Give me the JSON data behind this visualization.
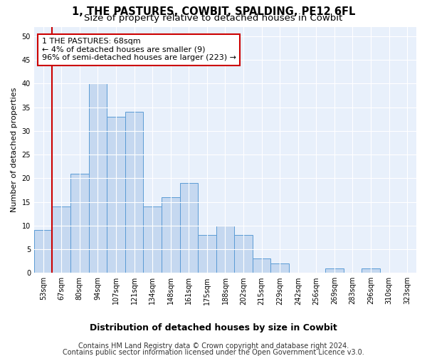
{
  "title": "1, THE PASTURES, COWBIT, SPALDING, PE12 6FL",
  "subtitle": "Size of property relative to detached houses in Cowbit",
  "xlabel": "Distribution of detached houses by size in Cowbit",
  "ylabel": "Number of detached properties",
  "categories": [
    "53sqm",
    "67sqm",
    "80sqm",
    "94sqm",
    "107sqm",
    "121sqm",
    "134sqm",
    "148sqm",
    "161sqm",
    "175sqm",
    "188sqm",
    "202sqm",
    "215sqm",
    "229sqm",
    "242sqm",
    "256sqm",
    "269sqm",
    "283sqm",
    "296sqm",
    "310sqm",
    "323sqm"
  ],
  "values": [
    9,
    14,
    21,
    40,
    33,
    34,
    14,
    16,
    19,
    8,
    10,
    8,
    3,
    2,
    0,
    0,
    1,
    0,
    1,
    0,
    0
  ],
  "bar_color": "#c5d8f0",
  "bar_edge_color": "#5b9bd5",
  "highlight_color": "#cc0000",
  "annotation_title": "1 THE PASTURES: 68sqm",
  "annotation_line1": "← 4% of detached houses are smaller (9)",
  "annotation_line2": "96% of semi-detached houses are larger (223) →",
  "annotation_box_color": "#ffffff",
  "annotation_box_edge": "#cc0000",
  "ylim": [
    0,
    52
  ],
  "yticks": [
    0,
    5,
    10,
    15,
    20,
    25,
    30,
    35,
    40,
    45,
    50
  ],
  "plot_bg_color": "#e8f0fb",
  "footer_line1": "Contains HM Land Registry data © Crown copyright and database right 2024.",
  "footer_line2": "Contains public sector information licensed under the Open Government Licence v3.0.",
  "title_fontsize": 10.5,
  "subtitle_fontsize": 9.5,
  "xlabel_fontsize": 9,
  "ylabel_fontsize": 8,
  "tick_fontsize": 7,
  "footer_fontsize": 7,
  "annot_fontsize": 8
}
